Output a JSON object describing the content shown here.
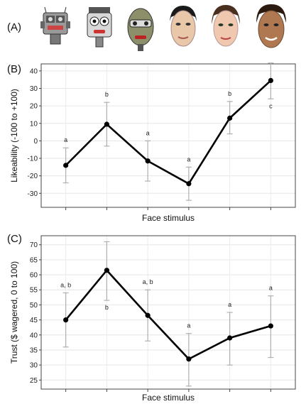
{
  "panels": {
    "a_label": "(A)",
    "b_label": "(B)",
    "c_label": "(C)"
  },
  "faces": [
    {
      "name": "mechanical-robot-1-icon"
    },
    {
      "name": "mechanical-robot-2-icon"
    },
    {
      "name": "humanoid-robot-icon"
    },
    {
      "name": "android-face-1-icon"
    },
    {
      "name": "android-face-2-icon"
    },
    {
      "name": "human-face-icon"
    }
  ],
  "chart_data": [
    {
      "type": "line",
      "xlabel": "Face stimulus",
      "ylabel": "Likeability (-100 to +100)",
      "ylim": [
        -38,
        44
      ],
      "yticks": [
        -30,
        -20,
        -10,
        0,
        10,
        20,
        30,
        40
      ],
      "grid": true,
      "x": [
        1,
        2,
        3,
        4,
        5,
        6
      ],
      "values": [
        -14,
        9.5,
        -11.5,
        -24.5,
        13,
        34.5
      ],
      "error_low": [
        -24,
        -3,
        -23,
        -34,
        4,
        24
      ],
      "error_high": [
        -4,
        22,
        0,
        -15,
        22.5,
        44.5
      ],
      "significance_labels": [
        "a",
        "b",
        "a",
        "a",
        "b",
        "c"
      ],
      "significance_positions": [
        "above",
        "above",
        "above",
        "above",
        "above",
        "below"
      ]
    },
    {
      "type": "line",
      "xlabel": "Face stimulus",
      "ylabel": "Trust ($ wagered, 0 to 100)",
      "ylim": [
        22,
        73
      ],
      "yticks": [
        25,
        30,
        35,
        40,
        45,
        50,
        55,
        60,
        65,
        70
      ],
      "grid": true,
      "x": [
        1,
        2,
        3,
        4,
        5,
        6
      ],
      "values": [
        45,
        61.5,
        46.5,
        32,
        39,
        43
      ],
      "error_low": [
        36,
        51.5,
        38,
        23,
        30,
        32.5
      ],
      "error_high": [
        54,
        71,
        55,
        40.5,
        47.5,
        53
      ],
      "significance_labels": [
        "a, b",
        "b",
        "a, b",
        "a",
        "a",
        "a"
      ],
      "significance_positions": [
        "above",
        "below",
        "above",
        "above",
        "above",
        "above"
      ]
    }
  ]
}
